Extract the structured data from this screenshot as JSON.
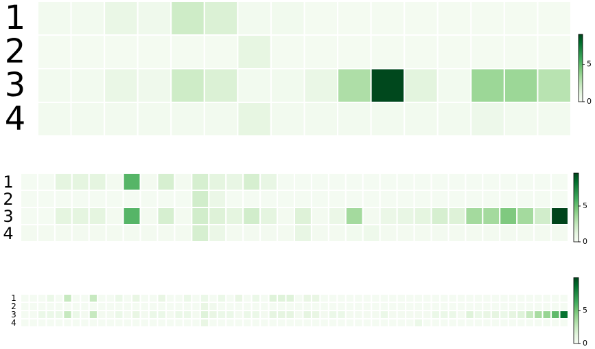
{
  "chart_data": [
    {
      "type": "heatmap",
      "rows": [
        "1",
        "2",
        "3",
        "4"
      ],
      "values": [
        [
          0.3,
          0.3,
          0.8,
          0.5,
          2,
          1.5,
          0.3,
          0.4,
          0.2,
          0.2,
          0.2,
          0.2,
          0.2,
          0.2,
          0.2,
          0.2
        ],
        [
          0.2,
          0.2,
          0.2,
          0.2,
          0.2,
          0.2,
          1,
          0.2,
          0.2,
          0.2,
          0.2,
          0.2,
          0.2,
          0.2,
          0.2,
          0.2
        ],
        [
          0.3,
          0.3,
          0.8,
          0.5,
          2,
          1.5,
          0.3,
          0.4,
          0.8,
          3,
          8.9,
          1.2,
          0.3,
          3.5,
          3.5,
          2.7
        ],
        [
          0.3,
          0.3,
          0.3,
          0.3,
          0.3,
          0.3,
          1,
          0.3,
          0.3,
          0.3,
          0.3,
          0.3,
          0.3,
          0.6,
          0.3,
          0.3
        ]
      ],
      "clim": [
        0,
        9
      ],
      "cticks": [
        0,
        5
      ],
      "colormap": [
        "#f7fcf5",
        "#e5f5e0",
        "#c7e9c0",
        "#a1d99b",
        "#74c476",
        "#41ab5d",
        "#238b45",
        "#006d2c",
        "#00441b"
      ]
    },
    {
      "type": "heatmap",
      "rows": [
        "1",
        "2",
        "3",
        "4"
      ],
      "values": [
        [
          0.2,
          0.2,
          1.2,
          1.2,
          1.2,
          0.3,
          5.5,
          0.3,
          1.8,
          0.3,
          1.8,
          1.2,
          1,
          1.8,
          1,
          0.2,
          0.2,
          0.2,
          0.2,
          0.2,
          0.2,
          0.2,
          0.2,
          0.2,
          0.2,
          0.2,
          0.2,
          0.2,
          0.2,
          0.2,
          0.2,
          0.2
        ],
        [
          0.2,
          0.2,
          0.2,
          0.2,
          0.2,
          0.2,
          0.2,
          0.2,
          0.2,
          0.2,
          2,
          0.8,
          0.2,
          0.2,
          0.2,
          0.2,
          0.2,
          0.2,
          0.2,
          0.2,
          0.2,
          0.2,
          0.2,
          0.2,
          0.2,
          0.2,
          0.2,
          0.2,
          0.2,
          0.2,
          0.2,
          0.2
        ],
        [
          0.2,
          0.2,
          1.2,
          1.2,
          1.2,
          0.3,
          5.5,
          0.3,
          1.8,
          0.3,
          2,
          1.5,
          1.2,
          2,
          1.2,
          0.3,
          1.5,
          0.3,
          0.8,
          3.5,
          0.3,
          0.8,
          1,
          1.2,
          1.8,
          1.5,
          3.5,
          3.5,
          4.5,
          3.5,
          2,
          9.6
        ],
        [
          0.3,
          0.3,
          0.3,
          0.3,
          0.3,
          0.3,
          0.3,
          0.3,
          0.3,
          0.3,
          1.8,
          0.8,
          0.3,
          0.3,
          0.3,
          0.3,
          1,
          0.3,
          0.3,
          0.4,
          0.6,
          0.3,
          0.3,
          0.3,
          0.3,
          0.3,
          0.3,
          0.3,
          0.3,
          0.3,
          0.3,
          0.3
        ]
      ],
      "clim": [
        0,
        9.6
      ],
      "cticks": [
        0,
        5
      ],
      "colormap": [
        "#f7fcf5",
        "#e5f5e0",
        "#c7e9c0",
        "#a1d99b",
        "#74c476",
        "#41ab5d",
        "#238b45",
        "#006d2c",
        "#00441b"
      ]
    },
    {
      "type": "heatmap",
      "rows": [
        "1",
        "2",
        "3",
        "4"
      ],
      "values": [
        [
          0.2,
          0.2,
          0.2,
          0.8,
          0.2,
          2.5,
          0.2,
          0.2,
          2.5,
          0.2,
          0.2,
          0.8,
          0.2,
          1,
          0.2,
          0.2,
          1,
          0.2,
          0.2,
          0.8,
          0.2,
          0.8,
          0.2,
          0.8,
          0.2,
          1,
          0.2,
          0.8,
          0.2,
          1.5,
          1.5,
          1.5,
          0.2,
          1,
          1,
          0.2,
          0.2,
          0.2,
          0.2,
          0.2,
          0.2,
          0.2,
          0.2,
          0.2,
          0.2,
          0.2,
          0.2,
          0.2,
          0.2,
          0.2,
          0.2,
          0.2,
          0.2,
          0.2,
          0.2,
          0.2,
          0.2,
          0.2,
          0.2,
          0.2,
          0.2,
          0.2,
          0.2,
          0.2
        ],
        [
          0.2,
          0.2,
          0.2,
          0.2,
          0.2,
          0.2,
          0.2,
          0.2,
          0.2,
          0.2,
          0.2,
          0.2,
          0.2,
          0.2,
          0.2,
          0.2,
          0.2,
          0.2,
          0.2,
          0.2,
          0.2,
          1,
          0.5,
          0.2,
          0.2,
          0.2,
          0.2,
          0.2,
          0.2,
          0.2,
          0.2,
          0.2,
          0.2,
          0.2,
          0.2,
          0.2,
          0.2,
          0.2,
          0.2,
          0.2,
          0.2,
          0.2,
          0.2,
          0.2,
          0.2,
          0.2,
          0.2,
          0.2,
          0.2,
          0.2,
          0.2,
          0.2,
          0.2,
          0.2,
          0.2,
          0.2,
          0.2,
          0.2,
          0.2,
          0.2,
          0.2,
          0.2,
          0.2,
          0.2
        ],
        [
          0.2,
          0.2,
          0.8,
          0.8,
          0.8,
          2.5,
          0.8,
          0.3,
          2.5,
          0.3,
          0.3,
          0.8,
          0.3,
          1,
          0.3,
          0.8,
          0.8,
          0.3,
          0.8,
          0.8,
          0.3,
          1.5,
          1,
          0.8,
          0.8,
          0.3,
          0.8,
          0.8,
          0.3,
          1.2,
          1.2,
          1.2,
          0.3,
          1.2,
          1,
          0.3,
          0.8,
          0.8,
          0.3,
          0.3,
          0.3,
          0.3,
          0.8,
          0.3,
          0.3,
          0.3,
          0.3,
          0.3,
          0.8,
          0.8,
          0.8,
          0.3,
          1.5,
          0.8,
          1,
          1.2,
          0.8,
          1.2,
          1.5,
          2.5,
          3.5,
          4,
          5.5,
          8.5
        ],
        [
          0.2,
          0.2,
          0.2,
          0.2,
          0.2,
          0.2,
          0.2,
          0.2,
          0.2,
          0.2,
          0.2,
          0.2,
          0.2,
          0.2,
          0.2,
          0.2,
          0.2,
          0.2,
          0.2,
          0.2,
          0.2,
          1,
          0.2,
          0.2,
          0.2,
          0.2,
          0.2,
          0.2,
          0.2,
          0.2,
          0.2,
          0.2,
          0.2,
          0.2,
          0.2,
          0.2,
          0.2,
          0.2,
          0.2,
          0.2,
          0.2,
          0.2,
          0.2,
          0.2,
          0.2,
          0.2,
          0.8,
          0.2,
          0.2,
          0.2,
          0.2,
          0.2,
          0.2,
          0.2,
          0.2,
          0.2,
          0.2,
          0.2,
          0.2,
          0.2,
          0.2,
          0.2,
          0.2,
          0.2
        ]
      ],
      "clim": [
        0,
        10
      ],
      "cticks": [
        0,
        5
      ],
      "colormap": [
        "#f7fcf5",
        "#e5f5e0",
        "#c7e9c0",
        "#a1d99b",
        "#74c476",
        "#41ab5d",
        "#238b45",
        "#006d2c",
        "#00441b"
      ]
    }
  ]
}
